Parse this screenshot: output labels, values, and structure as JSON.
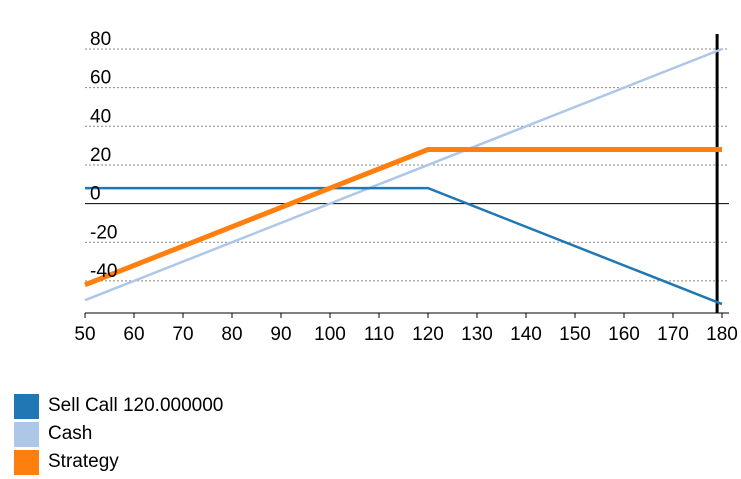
{
  "chart_data": {
    "type": "line",
    "title": "",
    "xlabel": "",
    "ylabel": "",
    "xlim": [
      50,
      180
    ],
    "ylim": [
      -50,
      80
    ],
    "x_ticks": [
      50,
      60,
      70,
      80,
      90,
      100,
      110,
      120,
      130,
      140,
      150,
      160,
      170,
      180
    ],
    "y_ticks": [
      80,
      60,
      40,
      20,
      0,
      -20,
      -40
    ],
    "grid": "horizontal dotted",
    "legend_position": "bottom-left",
    "vertical_marker_x": 179,
    "series": [
      {
        "name": "Sell Call 120.000000",
        "color": "#1f77b4",
        "points": [
          [
            50,
            8
          ],
          [
            120,
            8
          ],
          [
            180,
            -52
          ]
        ]
      },
      {
        "name": "Cash",
        "color": "#aec7e8",
        "points": [
          [
            50,
            -50
          ],
          [
            180,
            80
          ]
        ]
      },
      {
        "name": "Strategy",
        "color": "#ff7f0e",
        "points": [
          [
            50,
            -42
          ],
          [
            120,
            28
          ],
          [
            180,
            28
          ]
        ]
      }
    ]
  }
}
